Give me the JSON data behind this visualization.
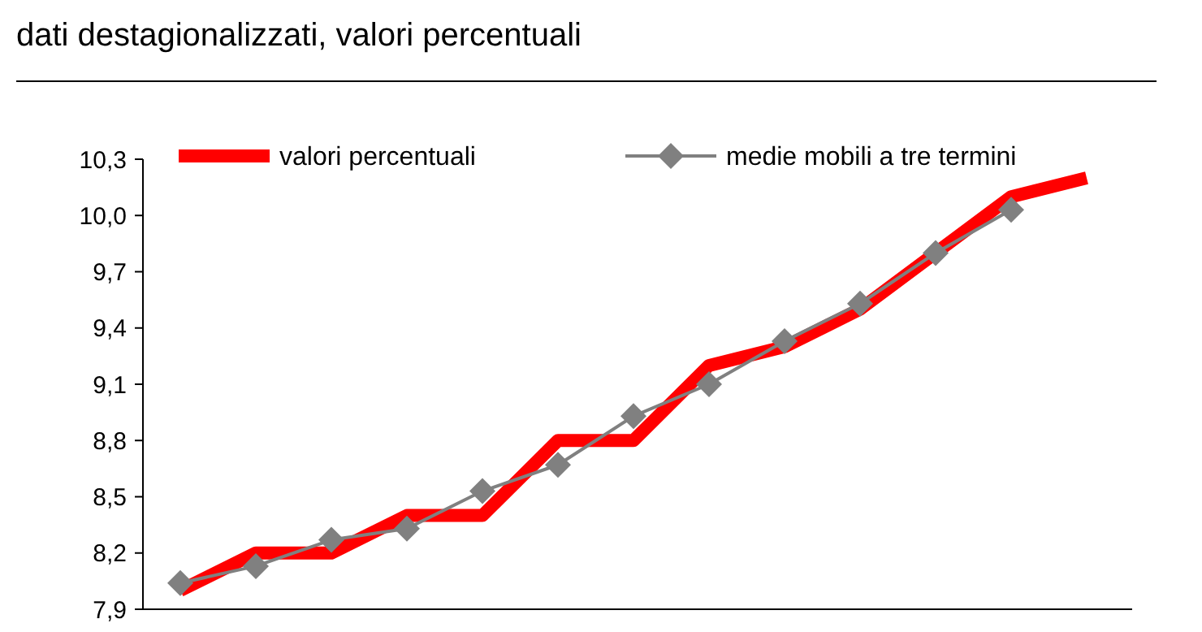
{
  "chart_data": {
    "type": "line",
    "title": "dati destagionalizzati, valori percentuali",
    "categories": [
      null,
      null,
      null,
      null,
      null,
      null,
      null,
      null,
      null,
      null,
      null,
      null,
      null
    ],
    "series": [
      {
        "name": "valori percentuali",
        "color": "#ff0000",
        "marker": "none",
        "values": [
          8.0,
          8.2,
          8.2,
          8.4,
          8.4,
          8.8,
          8.8,
          9.2,
          9.3,
          9.5,
          9.8,
          10.1,
          10.2
        ]
      },
      {
        "name": "medie mobili a tre termini",
        "color": "#808080",
        "marker": "diamond",
        "values": [
          8.04,
          8.13,
          8.27,
          8.33,
          8.53,
          8.67,
          8.93,
          9.1,
          9.33,
          9.53,
          9.8,
          10.03,
          null
        ]
      }
    ],
    "ylim": [
      7.9,
      10.3
    ],
    "yticks": [
      {
        "value": 7.9,
        "label": "7,9"
      },
      {
        "value": 8.2,
        "label": "8,2"
      },
      {
        "value": 8.5,
        "label": "8,5"
      },
      {
        "value": 8.8,
        "label": "8,8"
      },
      {
        "value": 9.1,
        "label": "9,1"
      },
      {
        "value": 9.4,
        "label": "9,4"
      },
      {
        "value": 9.7,
        "label": "9,7"
      },
      {
        "value": 10.0,
        "label": "10,0"
      },
      {
        "value": 10.3,
        "label": "10,3"
      }
    ],
    "tick_labels": "y",
    "grid": false,
    "legend": "top"
  }
}
